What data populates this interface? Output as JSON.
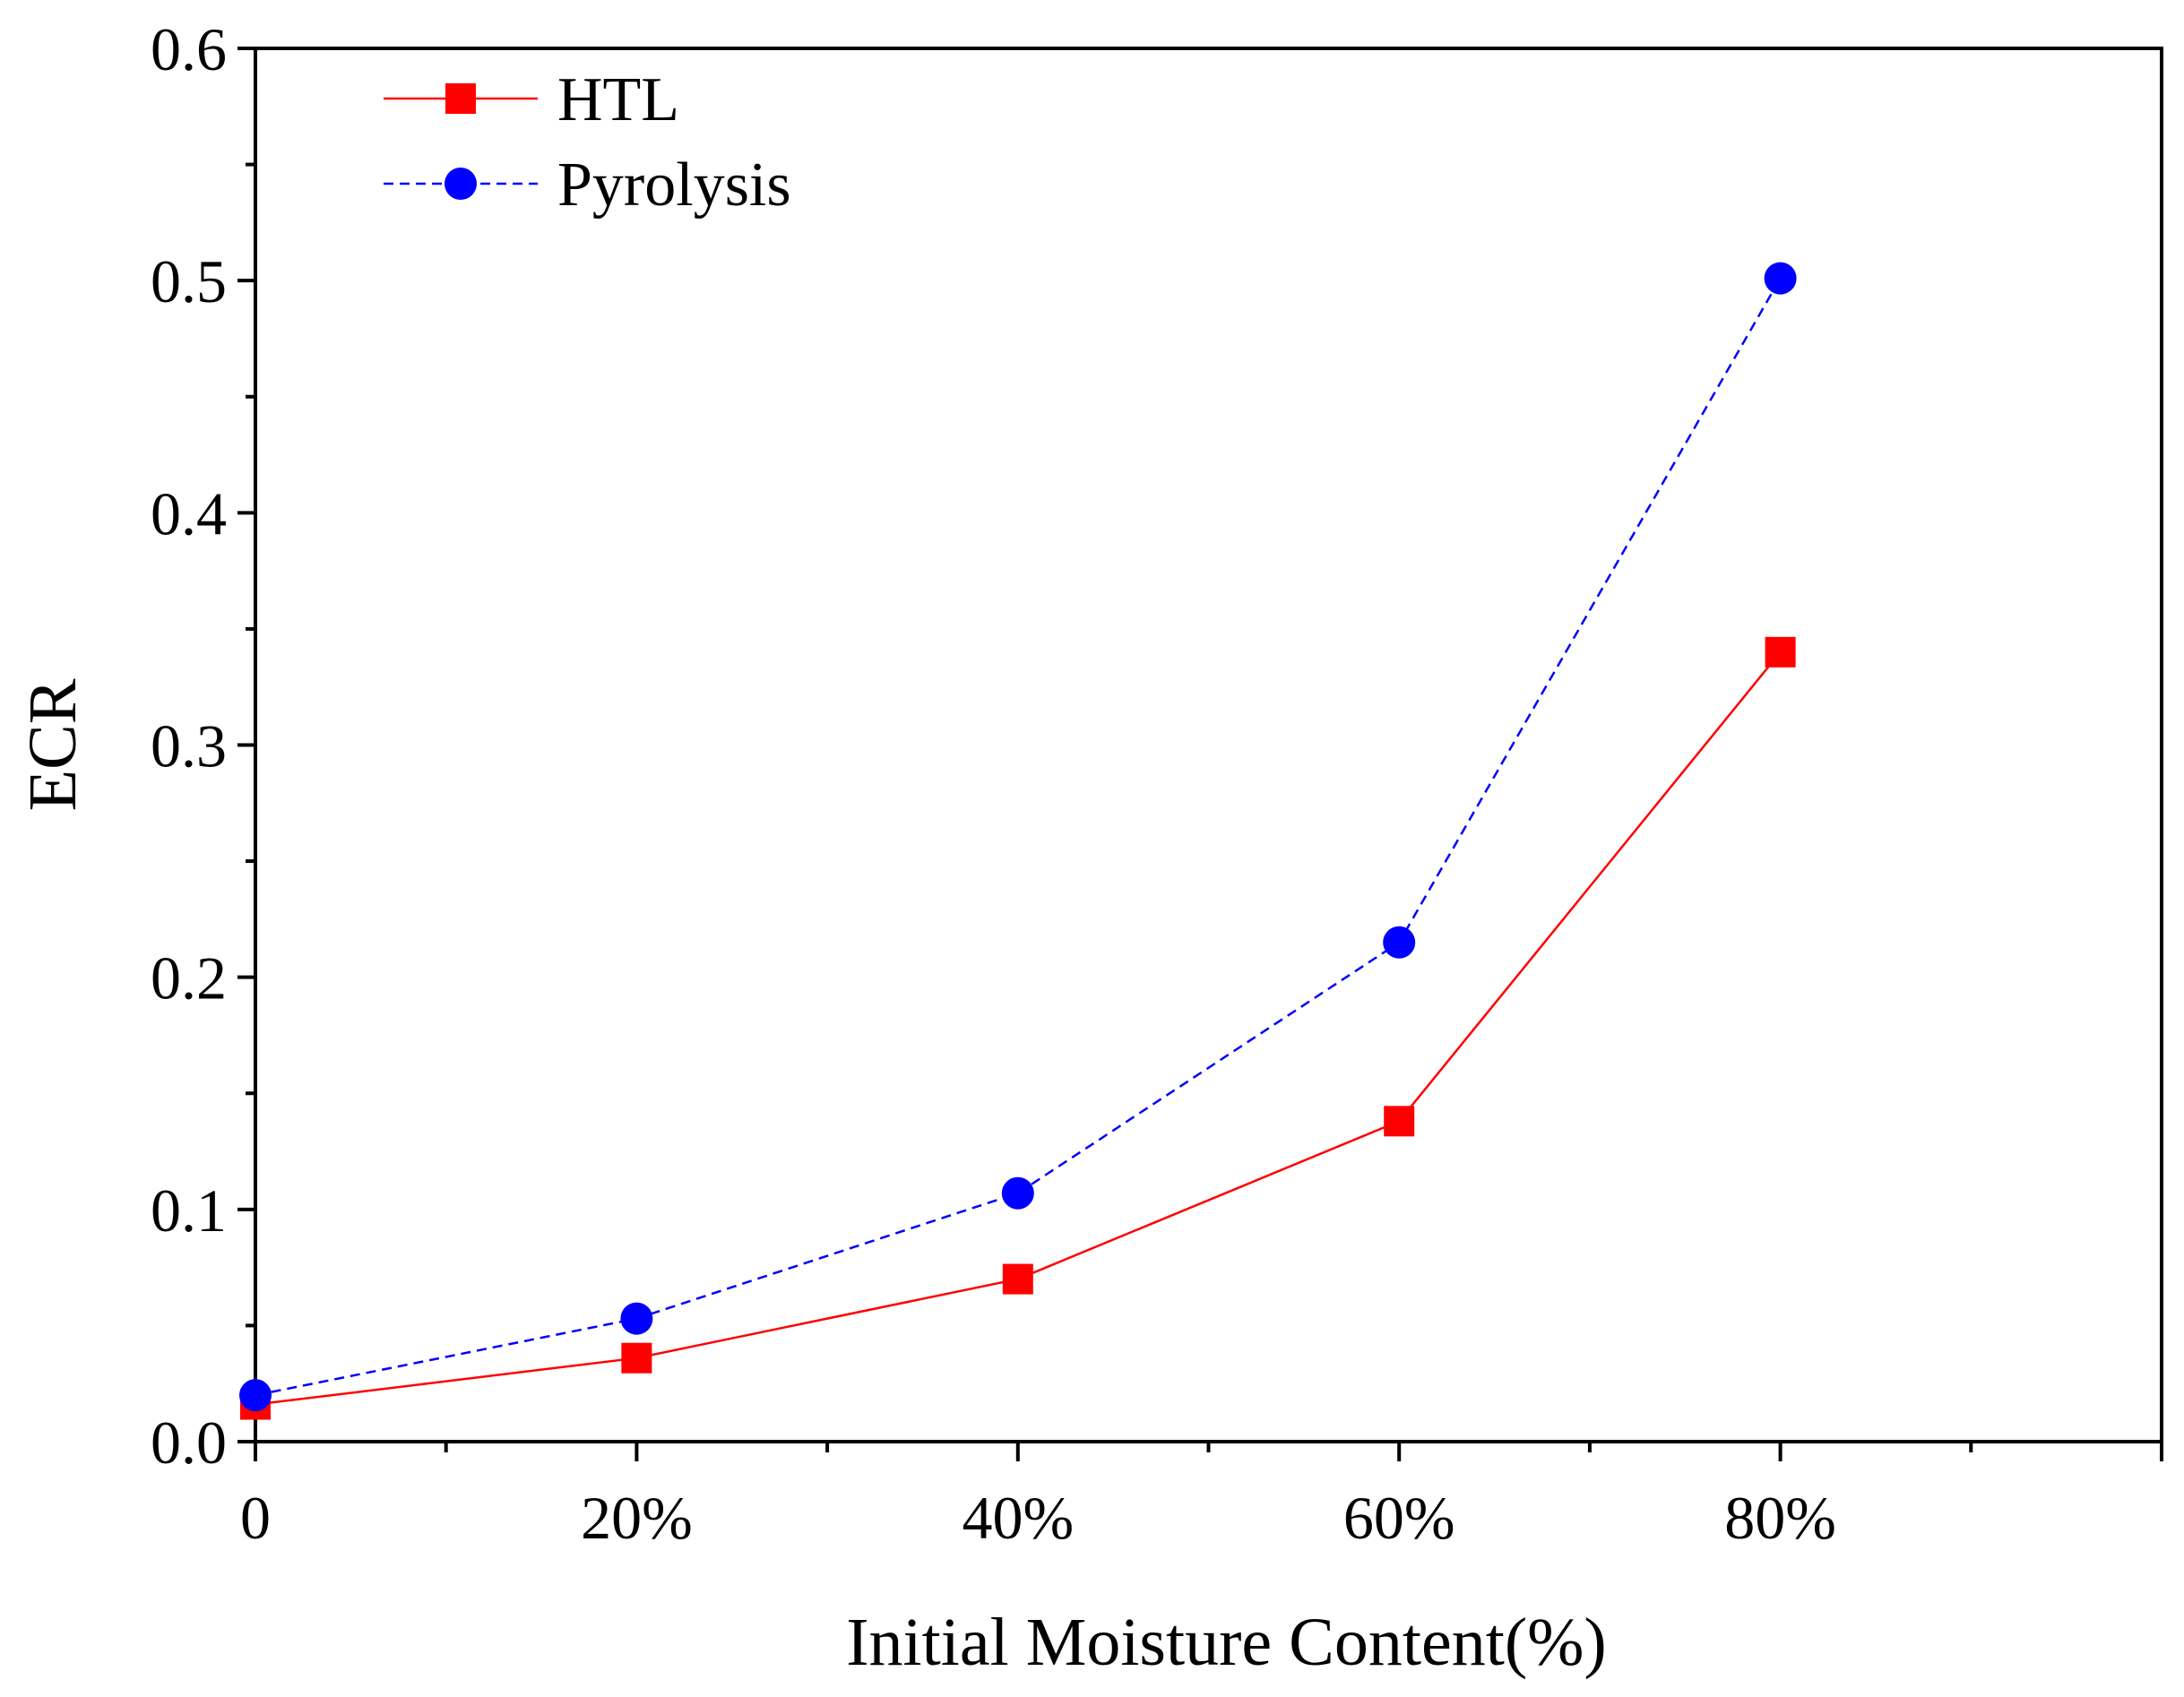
{
  "chart_data": {
    "type": "line",
    "title": "",
    "xlabel": "Initial Moisture Content(%)",
    "ylabel": "ECR",
    "x": [
      0,
      20,
      40,
      60,
      80
    ],
    "xlim": [
      0,
      100
    ],
    "ylim": [
      0,
      0.6
    ],
    "x_ticks": [
      {
        "value": 0,
        "label": "0"
      },
      {
        "value": 20,
        "label": "20%"
      },
      {
        "value": 40,
        "label": "40%"
      },
      {
        "value": 60,
        "label": "60%"
      },
      {
        "value": 80,
        "label": "80%"
      }
    ],
    "y_ticks": [
      {
        "value": 0,
        "label": "0.0"
      },
      {
        "value": 0.1,
        "label": "0.1"
      },
      {
        "value": 0.2,
        "label": "0.2"
      },
      {
        "value": 0.3,
        "label": "0.3"
      },
      {
        "value": 0.4,
        "label": "0.4"
      },
      {
        "value": 0.5,
        "label": "0.5"
      },
      {
        "value": 0.6,
        "label": "0.6"
      }
    ],
    "grid": false,
    "legend_position": "top-left",
    "series": [
      {
        "name": "HTL",
        "values": [
          0.016,
          0.036,
          0.07,
          0.138,
          0.34
        ],
        "color": "#ff0000",
        "marker": "square",
        "line_style": "solid"
      },
      {
        "name": "Pyrolysis",
        "values": [
          0.02,
          0.053,
          0.107,
          0.215,
          0.501
        ],
        "color": "#0000ff",
        "marker": "circle",
        "line_style": "dashed"
      }
    ]
  }
}
